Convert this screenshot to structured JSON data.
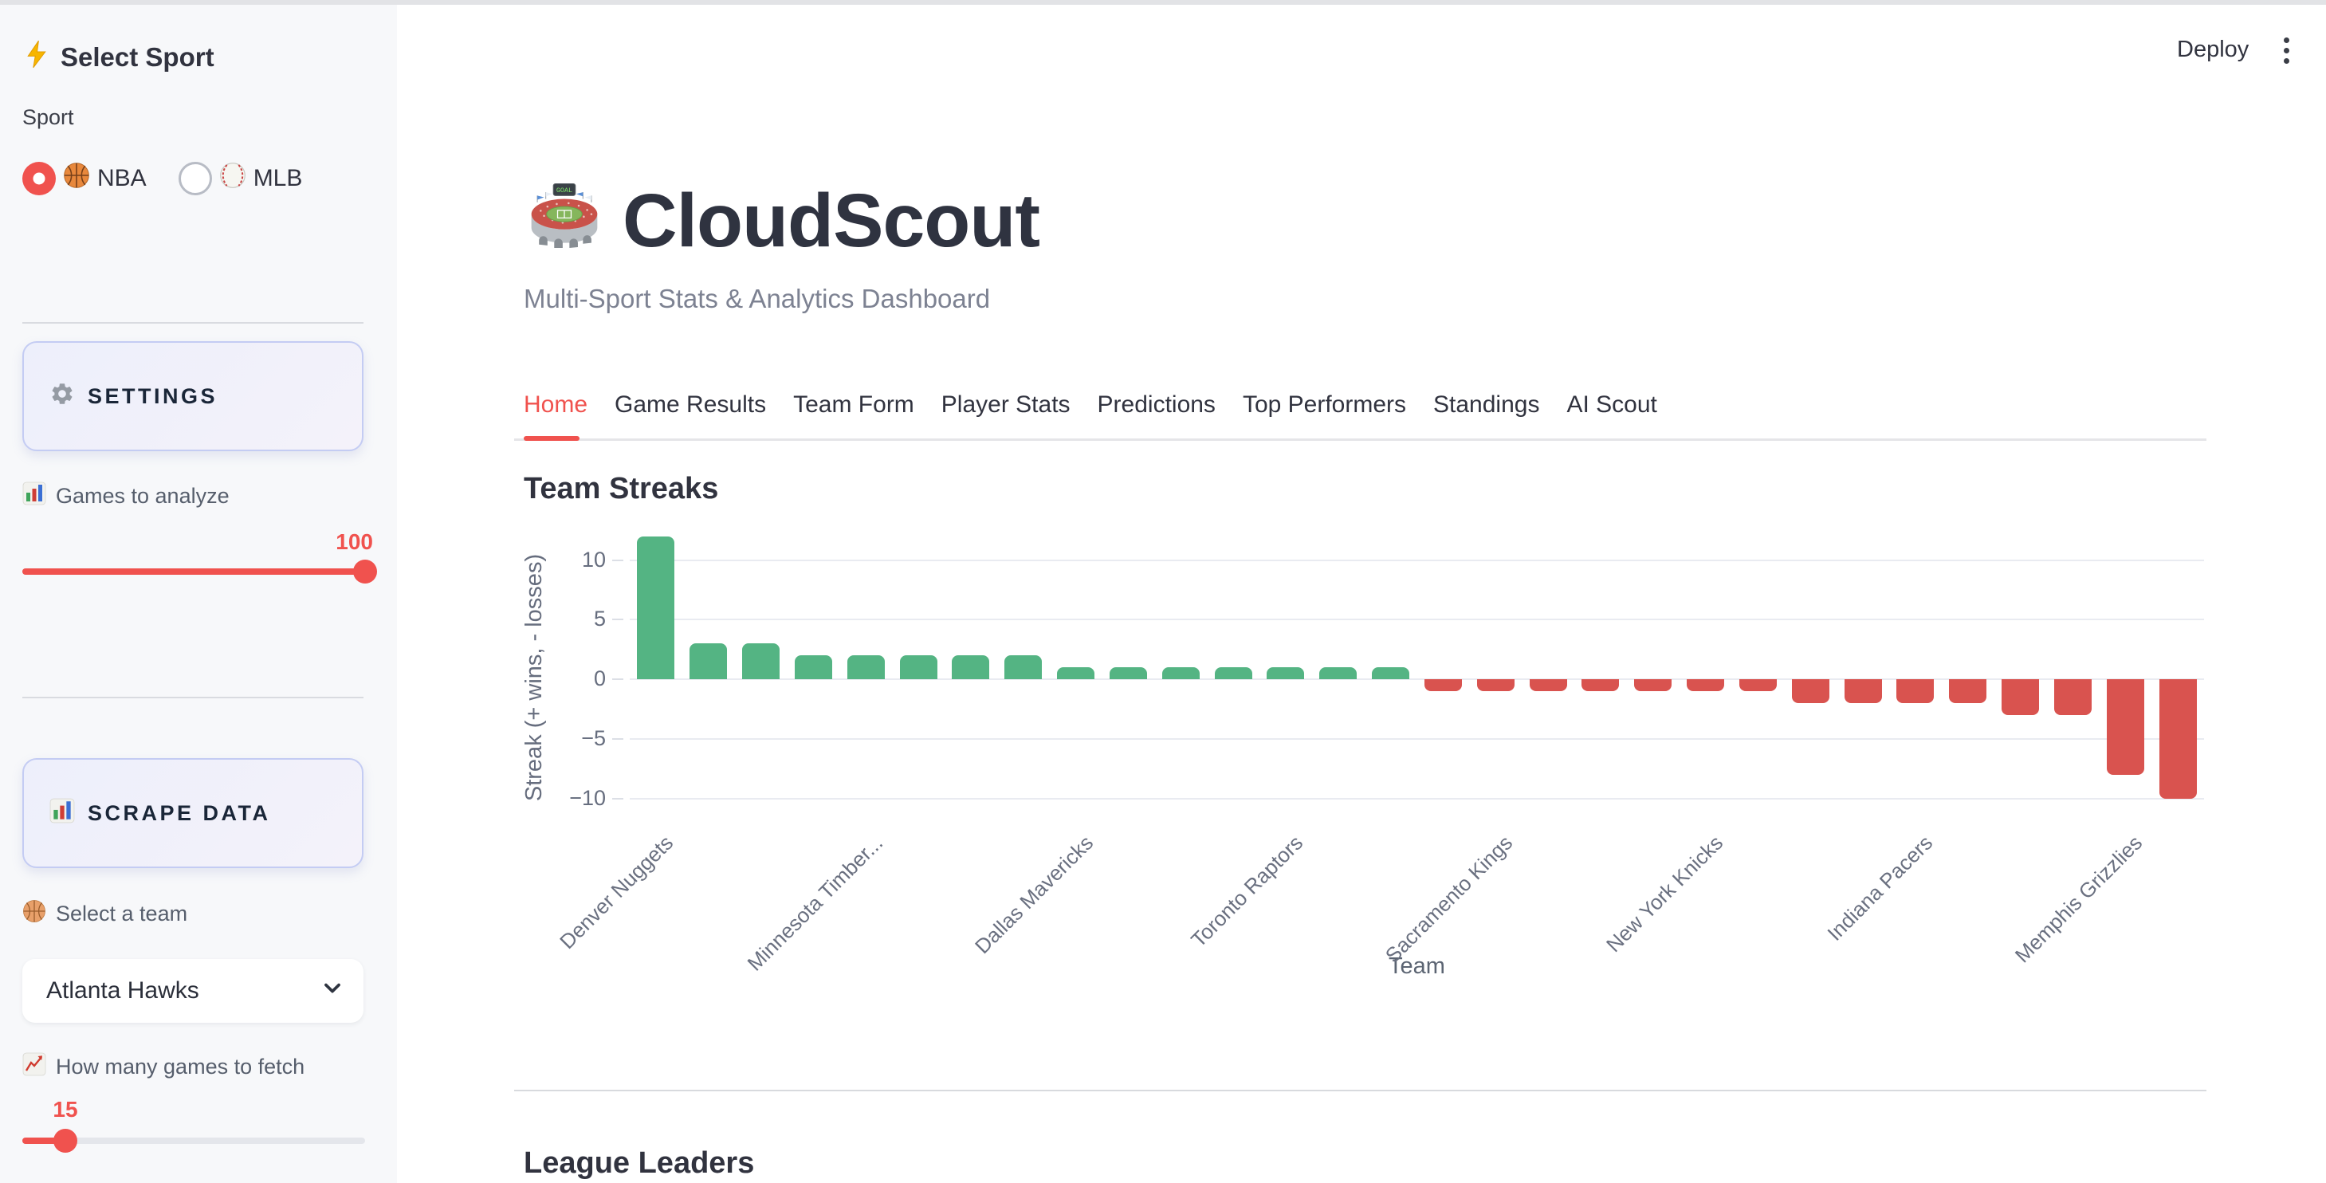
{
  "app": {
    "deploy_label": "Deploy",
    "accent_color": "#f0524e"
  },
  "sidebar": {
    "header": "Select Sport",
    "sport_label": "Sport",
    "radio": {
      "options": [
        {
          "label": "NBA",
          "icon": "basketball",
          "selected": true
        },
        {
          "label": "MLB",
          "icon": "baseball",
          "selected": false
        }
      ]
    },
    "settings_button": "SETTINGS",
    "games_slider": {
      "label": "Games to analyze",
      "value": "100"
    },
    "scrape_button": "SCRAPE DATA",
    "team_select": {
      "label": "Select a team",
      "value": "Atlanta Hawks"
    },
    "fetch_slider": {
      "label": "How many games to fetch",
      "value": "15"
    }
  },
  "main": {
    "title": "CloudScout",
    "subtitle": "Multi-Sport Stats & Analytics Dashboard",
    "tabs": [
      "Home",
      "Game Results",
      "Team Form",
      "Player Stats",
      "Predictions",
      "Top Performers",
      "Standings",
      "AI Scout"
    ],
    "active_tab": "Home",
    "league_leaders_title": "League Leaders"
  },
  "icons": {
    "sidebar_header": "lightning-bolt",
    "radio_nba": "basketball",
    "radio_mlb": "baseball",
    "settings_button": "gear",
    "games_slider": "bar-chart",
    "scrape_button": "bar-chart",
    "team_select": "basketball",
    "fetch_slider": "line-chart-up",
    "app_title": "stadium",
    "menu": "kebab-dots",
    "team_dropdown": "chevron-down"
  },
  "colors": {
    "accent_red": "#f0524e",
    "positive_green": "#54b483",
    "negative_red": "#d9534f",
    "dark_text": "#31333f",
    "muted_text": "#7d8292",
    "sidebar_bg": "#f7f8fa",
    "button_border": "#c4ccf3",
    "gridline": "#e9ebf1"
  },
  "chart_data": {
    "type": "bar",
    "title": "Team Streaks",
    "xlabel": "Team",
    "ylabel": "Streak (+ wins, - losses)",
    "yticks": [
      10,
      5,
      0,
      -5,
      -10
    ],
    "ylim": [
      -10.6,
      12.5
    ],
    "grid": true,
    "legend": false,
    "values": [
      12,
      3,
      3,
      2,
      2,
      2,
      2,
      2,
      1,
      1,
      1,
      1,
      1,
      1,
      1,
      -1,
      -1,
      -1,
      -1,
      -1,
      -1,
      -1,
      -2,
      -2,
      -2,
      -2,
      -3,
      -3,
      -8,
      -10
    ],
    "x_tick_labels": [
      {
        "index": 0,
        "label": "Denver Nuggets"
      },
      {
        "index": 4,
        "label": "Minnesota Timber..."
      },
      {
        "index": 8,
        "label": "Dallas Mavericks"
      },
      {
        "index": 12,
        "label": "Toronto Raptors"
      },
      {
        "index": 16,
        "label": "Sacramento Kings"
      },
      {
        "index": 20,
        "label": "New York Knicks"
      },
      {
        "index": 24,
        "label": "Indiana Pacers"
      },
      {
        "index": 28,
        "label": "Memphis Grizzlies"
      }
    ],
    "positive_color": "#54b483",
    "negative_color": "#d9534f"
  }
}
